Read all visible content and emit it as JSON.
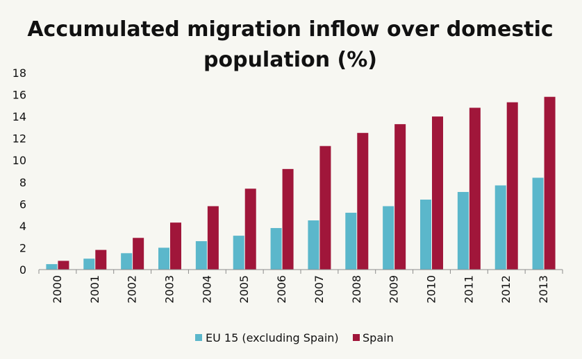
{
  "chart_data": {
    "type": "bar",
    "title": "Accumulated migration inflow over domestic population (%)",
    "title_lines": [
      "Accumulated migration inflow over domestic",
      "population (%)"
    ],
    "xlabel": "",
    "ylabel": "",
    "ylim": [
      0,
      18
    ],
    "yticks": [
      0,
      2,
      4,
      6,
      8,
      10,
      12,
      14,
      16,
      18
    ],
    "categories": [
      "2000",
      "2001",
      "2002",
      "2003",
      "2004",
      "2005",
      "2006",
      "2007",
      "2008",
      "2009",
      "2010",
      "2011",
      "2012",
      "2013"
    ],
    "series": [
      {
        "name": "EU 15 (excluding Spain)",
        "color": "#5bb7cb",
        "values": [
          0.5,
          1.0,
          1.5,
          2.0,
          2.6,
          3.1,
          3.8,
          4.5,
          5.2,
          5.8,
          6.4,
          7.1,
          7.7,
          8.4
        ]
      },
      {
        "name": "Spain",
        "color": "#a0163a",
        "values": [
          0.8,
          1.8,
          2.9,
          4.3,
          5.8,
          7.4,
          9.2,
          11.3,
          12.5,
          13.3,
          14.0,
          14.8,
          15.3,
          15.8
        ]
      }
    ],
    "legend_position": "bottom",
    "grid": false
  }
}
